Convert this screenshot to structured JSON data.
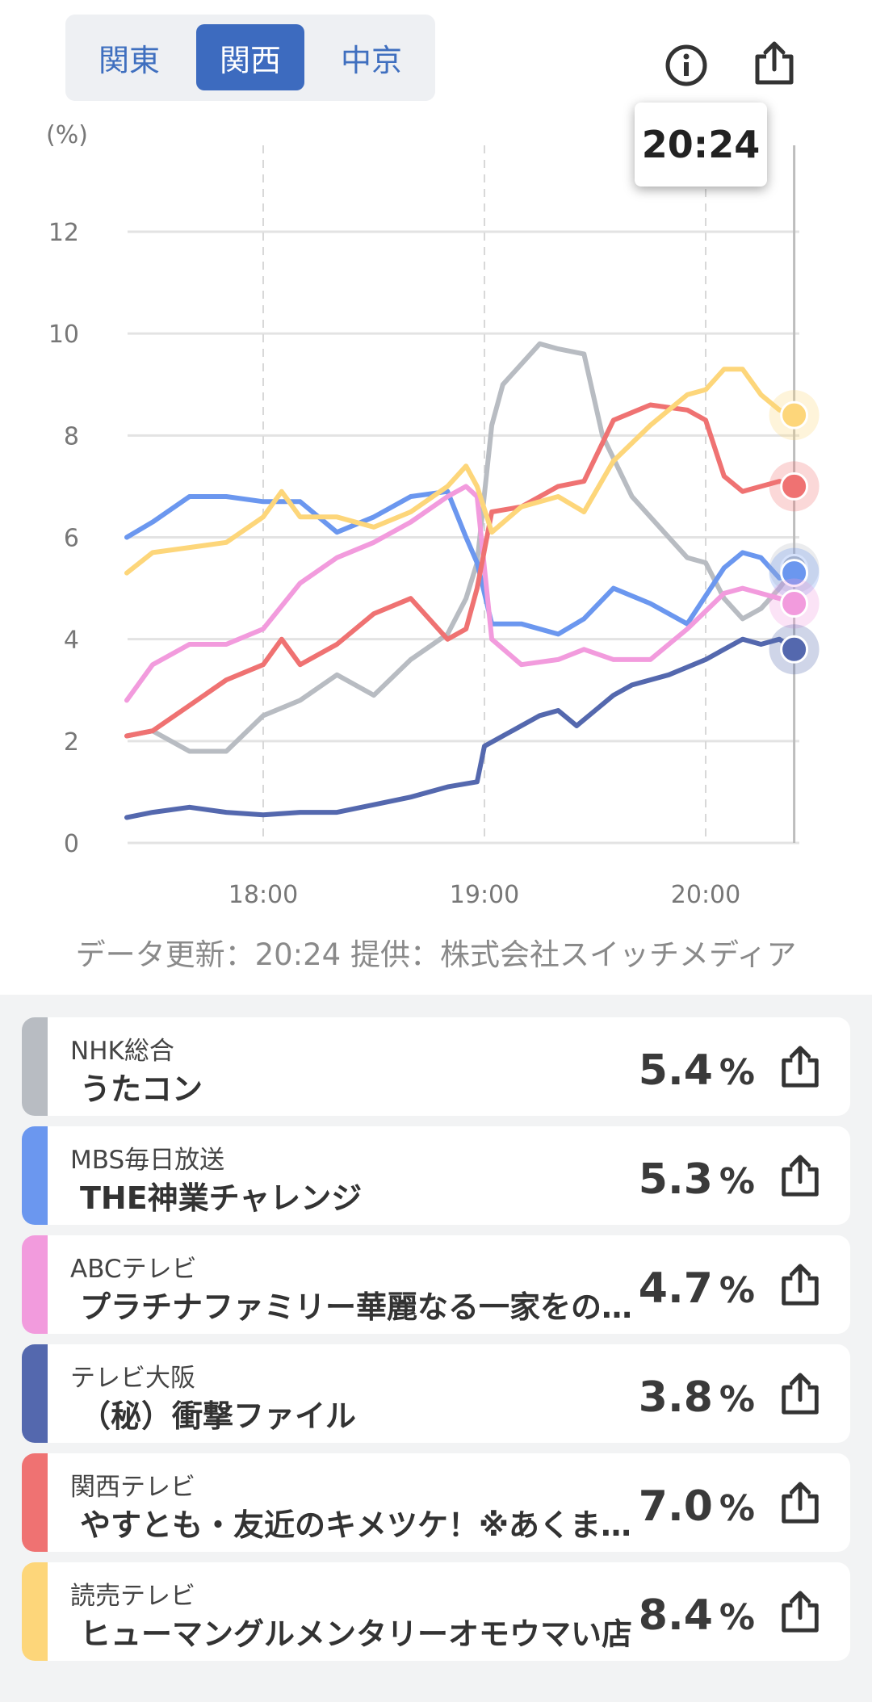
{
  "region_tabs": [
    {
      "label": "関東",
      "active": false
    },
    {
      "label": "関西",
      "active": true
    },
    {
      "label": "中京",
      "active": false
    }
  ],
  "icons": {
    "info": "info-icon",
    "share": "share-icon"
  },
  "tooltip": {
    "time": "20:24"
  },
  "footer": {
    "note": "データ更新：20:24  提供：株式会社スイッチメディア"
  },
  "chart_data": {
    "type": "line",
    "y_unit": "(%)",
    "ylim": [
      0,
      12
    ],
    "y_ticks": [
      0,
      2,
      4,
      6,
      8,
      10,
      12
    ],
    "x_ticks": [
      "18:00",
      "19:00",
      "20:00"
    ],
    "grid": true,
    "current_time": "20:24",
    "series": [
      {
        "name": "NHK総合",
        "color": "#b8bcc2",
        "x": [
          "17:23",
          "17:30",
          "17:40",
          "17:50",
          "18:00",
          "18:10",
          "18:20",
          "18:30",
          "18:40",
          "18:50",
          "18:55",
          "18:58",
          "19:02",
          "19:05",
          "19:10",
          "19:15",
          "19:20",
          "19:27",
          "19:32",
          "19:40",
          "19:50",
          "19:55",
          "20:00",
          "20:05",
          "20:10",
          "20:15",
          "20:20",
          "20:24"
        ],
        "values": [
          2.1,
          2.2,
          1.8,
          1.8,
          2.5,
          2.8,
          3.3,
          2.9,
          3.6,
          4.1,
          4.8,
          5.5,
          8.2,
          9.0,
          9.4,
          9.8,
          9.7,
          9.6,
          8.0,
          6.8,
          6.0,
          5.6,
          5.5,
          4.8,
          4.4,
          4.6,
          5.0,
          5.4
        ]
      },
      {
        "name": "MBS毎日放送",
        "color": "#6b97ef",
        "x": [
          "17:23",
          "17:30",
          "17:40",
          "17:50",
          "18:00",
          "18:10",
          "18:20",
          "18:30",
          "18:40",
          "18:50",
          "18:55",
          "18:58",
          "19:02",
          "19:10",
          "19:20",
          "19:27",
          "19:35",
          "19:45",
          "19:55",
          "20:05",
          "20:10",
          "20:15",
          "20:20",
          "20:24"
        ],
        "values": [
          6.0,
          6.3,
          6.8,
          6.8,
          6.7,
          6.7,
          6.1,
          6.4,
          6.8,
          6.9,
          6.0,
          5.5,
          4.3,
          4.3,
          4.1,
          4.4,
          5.0,
          4.7,
          4.3,
          5.4,
          5.7,
          5.6,
          5.2,
          5.3
        ]
      },
      {
        "name": "ABCテレビ",
        "color": "#f29bdd",
        "x": [
          "17:23",
          "17:30",
          "17:40",
          "17:50",
          "18:00",
          "18:10",
          "18:20",
          "18:30",
          "18:40",
          "18:50",
          "18:55",
          "18:58",
          "19:02",
          "19:10",
          "19:20",
          "19:27",
          "19:35",
          "19:45",
          "19:55",
          "20:05",
          "20:10",
          "20:15",
          "20:20",
          "20:24"
        ],
        "values": [
          2.8,
          3.5,
          3.9,
          3.9,
          4.2,
          5.1,
          5.6,
          5.9,
          6.3,
          6.8,
          7.0,
          6.8,
          4.0,
          3.5,
          3.6,
          3.8,
          3.6,
          3.6,
          4.2,
          4.9,
          5.0,
          4.9,
          4.8,
          4.7
        ]
      },
      {
        "name": "テレビ大阪",
        "color": "#5468ae",
        "x": [
          "17:23",
          "17:30",
          "17:40",
          "17:50",
          "18:00",
          "18:10",
          "18:20",
          "18:30",
          "18:40",
          "18:50",
          "18:58",
          "19:00",
          "19:05",
          "19:10",
          "19:15",
          "19:20",
          "19:25",
          "19:30",
          "19:35",
          "19:40",
          "19:50",
          "20:00",
          "20:05",
          "20:10",
          "20:15",
          "20:20",
          "20:24"
        ],
        "values": [
          0.5,
          0.6,
          0.7,
          0.6,
          0.55,
          0.6,
          0.6,
          0.75,
          0.9,
          1.1,
          1.2,
          1.9,
          2.1,
          2.3,
          2.5,
          2.6,
          2.3,
          2.6,
          2.9,
          3.1,
          3.3,
          3.6,
          3.8,
          4.0,
          3.9,
          4.0,
          3.8
        ]
      },
      {
        "name": "関西テレビ",
        "color": "#ef7272",
        "x": [
          "17:23",
          "17:30",
          "17:40",
          "17:50",
          "18:00",
          "18:05",
          "18:10",
          "18:20",
          "18:30",
          "18:40",
          "18:50",
          "18:55",
          "18:58",
          "19:02",
          "19:10",
          "19:20",
          "19:27",
          "19:35",
          "19:45",
          "19:55",
          "20:00",
          "20:05",
          "20:10",
          "20:15",
          "20:20",
          "20:24"
        ],
        "values": [
          2.1,
          2.2,
          2.7,
          3.2,
          3.5,
          4.0,
          3.5,
          3.9,
          4.5,
          4.8,
          4.0,
          4.2,
          5.0,
          6.5,
          6.6,
          7.0,
          7.1,
          8.3,
          8.6,
          8.5,
          8.3,
          7.2,
          6.9,
          7.0,
          7.1,
          7.0
        ]
      },
      {
        "name": "読売テレビ",
        "color": "#fdd67a",
        "x": [
          "17:23",
          "17:30",
          "17:40",
          "17:50",
          "18:00",
          "18:05",
          "18:10",
          "18:20",
          "18:30",
          "18:40",
          "18:50",
          "18:55",
          "18:58",
          "19:02",
          "19:10",
          "19:20",
          "19:27",
          "19:35",
          "19:45",
          "19:55",
          "20:00",
          "20:05",
          "20:10",
          "20:15",
          "20:20",
          "20:24"
        ],
        "values": [
          5.3,
          5.7,
          5.8,
          5.9,
          6.4,
          6.9,
          6.4,
          6.4,
          6.2,
          6.5,
          7.0,
          7.4,
          7.0,
          6.1,
          6.6,
          6.8,
          6.5,
          7.5,
          8.2,
          8.8,
          8.9,
          9.3,
          9.3,
          8.8,
          8.5,
          8.4
        ]
      }
    ]
  },
  "programs": [
    {
      "station": "NHK総合",
      "title": "うたコン",
      "rating": "5.4",
      "unit": "%",
      "color": "#b8bcc2"
    },
    {
      "station": "MBS毎日放送",
      "title": "THE神業チャレンジ",
      "rating": "5.3",
      "unit": "%",
      "color": "#6b97ef"
    },
    {
      "station": "ABCテレビ",
      "title": "プラチナファミリー華麗なる一家をのぞき見",
      "rating": "4.7",
      "unit": "%",
      "color": "#f29bdd"
    },
    {
      "station": "テレビ大阪",
      "title": "（秘）衝撃ファイル",
      "rating": "3.8",
      "unit": "%",
      "color": "#5468ae"
    },
    {
      "station": "関西テレビ",
      "title": "やすとも・友近のキメツケ！※あくまで個人の見解です",
      "rating": "7.0",
      "unit": "%",
      "color": "#ef7272"
    },
    {
      "station": "読売テレビ",
      "title": "ヒューマングルメンタリーオモウマい店",
      "rating": "8.4",
      "unit": "%",
      "color": "#fdd67a"
    }
  ]
}
